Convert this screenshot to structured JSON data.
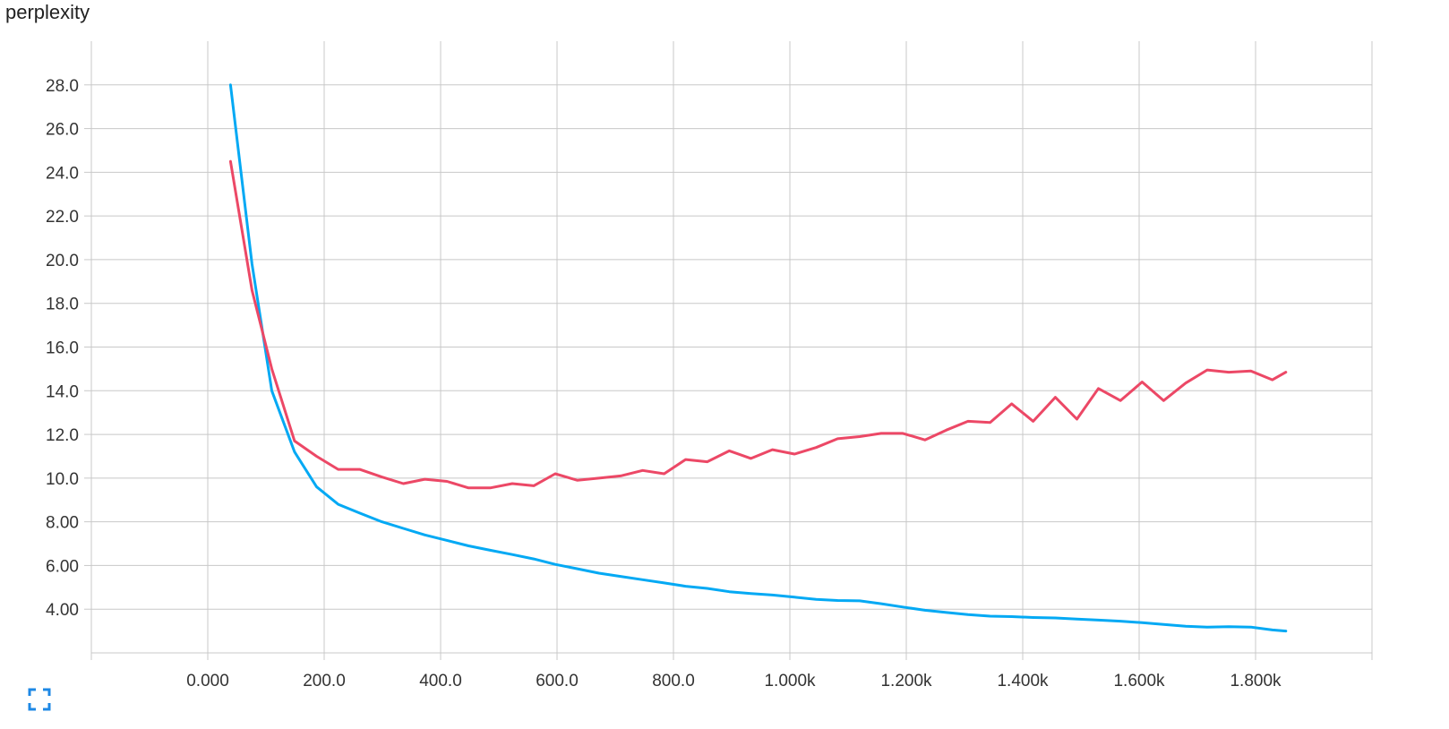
{
  "title": "perplexity",
  "expand_icon": "fullscreen-expand-icon",
  "chart_data": {
    "type": "line",
    "title": "perplexity",
    "xlabel": "",
    "ylabel": "",
    "xlim": [
      -200,
      2000
    ],
    "ylim": [
      2.0,
      30.0
    ],
    "grid": true,
    "x_ticks": [
      0,
      200,
      400,
      600,
      800,
      1000,
      1200,
      1400,
      1600,
      1800
    ],
    "x_tick_labels": [
      "0.000",
      "200.0",
      "400.0",
      "600.0",
      "800.0",
      "1.000k",
      "1.200k",
      "1.400k",
      "1.600k",
      "1.800k"
    ],
    "y_ticks": [
      4,
      6,
      8,
      10,
      12,
      14,
      16,
      18,
      20,
      22,
      24,
      26,
      28
    ],
    "y_tick_labels": [
      "4.00",
      "6.00",
      "8.00",
      "10.0",
      "12.0",
      "14.0",
      "16.0",
      "18.0",
      "20.0",
      "22.0",
      "24.0",
      "26.0",
      "28.0"
    ],
    "series": [
      {
        "color": "#03a9f4",
        "x": [
          39,
          76,
          110,
          149,
          187,
          224,
          261,
          299,
          336,
          373,
          411,
          448,
          485,
          523,
          560,
          597,
          635,
          672,
          709,
          747,
          784,
          821,
          858,
          896,
          933,
          970,
          1008,
          1045,
          1082,
          1120,
          1157,
          1194,
          1232,
          1269,
          1306,
          1344,
          1381,
          1418,
          1456,
          1493,
          1530,
          1568,
          1605,
          1642,
          1680,
          1717,
          1754,
          1792,
          1829,
          1852
        ],
        "y": [
          28.0,
          19.8,
          14.0,
          11.2,
          9.6,
          8.8,
          8.4,
          8.0,
          7.7,
          7.4,
          7.15,
          6.9,
          6.7,
          6.5,
          6.3,
          6.05,
          5.85,
          5.65,
          5.5,
          5.35,
          5.2,
          5.05,
          4.95,
          4.8,
          4.72,
          4.65,
          4.55,
          4.45,
          4.4,
          4.38,
          4.25,
          4.1,
          3.95,
          3.85,
          3.75,
          3.68,
          3.66,
          3.62,
          3.6,
          3.55,
          3.5,
          3.45,
          3.38,
          3.3,
          3.22,
          3.18,
          3.2,
          3.18,
          3.05,
          3.0
        ]
      },
      {
        "color": "#ec4866",
        "x": [
          39,
          76,
          110,
          149,
          187,
          224,
          261,
          299,
          336,
          373,
          411,
          448,
          485,
          523,
          560,
          597,
          635,
          672,
          709,
          747,
          784,
          821,
          858,
          896,
          933,
          970,
          1008,
          1045,
          1082,
          1120,
          1157,
          1194,
          1232,
          1269,
          1306,
          1344,
          1381,
          1418,
          1456,
          1493,
          1530,
          1568,
          1605,
          1642,
          1680,
          1717,
          1754,
          1792,
          1829,
          1852
        ],
        "y": [
          24.5,
          18.6,
          15.0,
          11.7,
          11.0,
          10.4,
          10.4,
          10.05,
          9.75,
          9.95,
          9.85,
          9.55,
          9.55,
          9.75,
          9.65,
          10.2,
          9.9,
          10.0,
          10.1,
          10.35,
          10.2,
          10.85,
          10.75,
          11.25,
          10.9,
          11.3,
          11.1,
          11.4,
          11.8,
          11.9,
          12.05,
          12.05,
          11.75,
          12.2,
          12.6,
          12.55,
          13.4,
          12.6,
          13.7,
          12.7,
          14.1,
          13.55,
          14.4,
          13.55,
          14.35,
          14.95,
          14.85,
          14.9,
          14.5,
          14.85
        ]
      }
    ]
  }
}
